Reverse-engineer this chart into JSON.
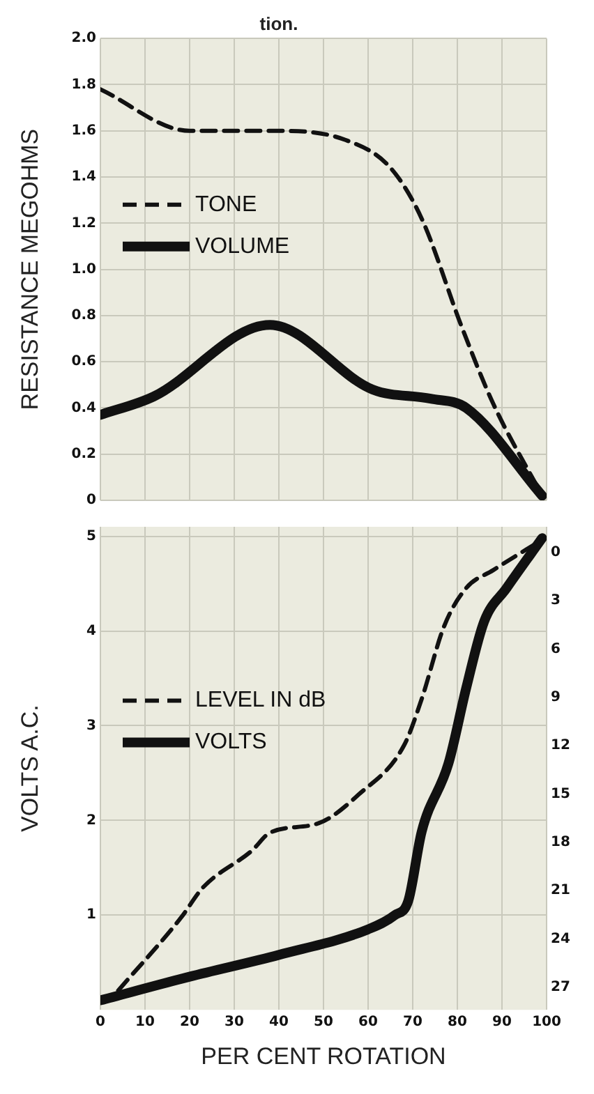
{
  "chart_data": [
    {
      "type": "line",
      "title": "tion.",
      "ylabel": "RESISTANCE MEGOHMS",
      "xlim": [
        0,
        100
      ],
      "xticks": [
        0,
        10,
        20,
        30,
        40,
        50,
        60,
        70,
        80,
        90,
        100
      ],
      "ylim": [
        0,
        2
      ],
      "yticks": [
        0,
        0.2,
        0.4,
        0.6,
        0.8,
        {
          "value": 1,
          "label": "1.0"
        },
        1.2,
        1.4,
        1.6,
        1.8,
        {
          "value": 2,
          "label": "2.0"
        }
      ],
      "tick_labels": "y",
      "grid": true,
      "legend": "left",
      "series": [
        {
          "name": "TONE",
          "color": "#111111",
          "line_style": "dashed",
          "x": [
            0,
            20,
            40,
            55,
            65,
            72,
            81,
            88,
            99
          ],
          "values": [
            1.78,
            1.6,
            1.6,
            1.56,
            1.44,
            1.22,
            0.75,
            0.42,
            0.02
          ]
        },
        {
          "name": "VOLUME",
          "color": "#111111",
          "line_style": "solid",
          "x": [
            0,
            12,
            38,
            61,
            74,
            82,
            99
          ],
          "values": [
            0.37,
            0.45,
            0.76,
            0.48,
            0.44,
            0.4,
            0.02
          ]
        }
      ]
    },
    {
      "type": "line",
      "xlabel": "PER CENT ROTATION",
      "ylabel": "VOLTS A.C.",
      "xlim": [
        0,
        100
      ],
      "xticks": [
        0,
        10,
        20,
        30,
        40,
        50,
        60,
        70,
        80,
        90,
        100
      ],
      "ylim": [
        0,
        5.1
      ],
      "yticks": [
        1,
        2,
        3,
        4,
        5
      ],
      "y2lim": [
        28.4,
        -1.6
      ],
      "y2ticks": [
        0,
        3,
        6,
        9,
        12,
        15,
        18,
        21,
        24,
        27
      ],
      "grid": true,
      "legend": "left",
      "series": [
        {
          "name": "LEVEL IN dB",
          "color": "#111111",
          "line_style": "dashed",
          "axis": "y2",
          "x": [
            4,
            18,
            23,
            34,
            38,
            49,
            58,
            68,
            72,
            77,
            82,
            88,
            99
          ],
          "values": [
            27.2,
            22.7,
            20.8,
            18.5,
            17.4,
            16.8,
            15,
            12,
            9.1,
            4.6,
            2.2,
            1.1,
            -0.8
          ]
        },
        {
          "name": "VOLTS",
          "color": "#111111",
          "line_style": "solid",
          "x": [
            0,
            20,
            40,
            60,
            66,
            69,
            72,
            78,
            82,
            86,
            91,
            99
          ],
          "values": [
            0.1,
            0.35,
            0.58,
            0.85,
            1.0,
            1.15,
            1.88,
            2.6,
            3.4,
            4.1,
            4.45,
            4.98
          ]
        }
      ]
    }
  ]
}
